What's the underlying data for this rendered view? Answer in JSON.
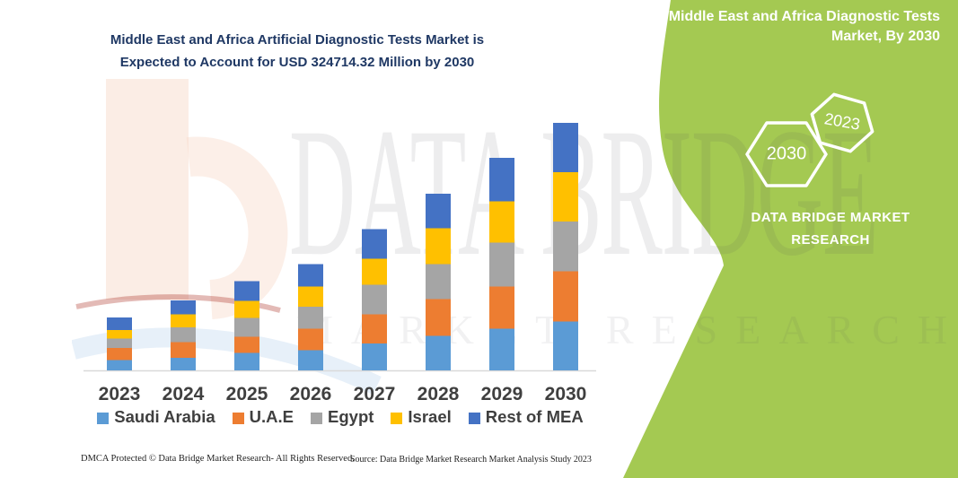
{
  "title": {
    "line1": "Middle East and Africa Artificial Diagnostic Tests Market is",
    "line2": "Expected to Account for USD 324714.32 Million by 2030"
  },
  "right_panel": {
    "heading_line1": "Middle East and Africa Diagnostic Tests",
    "heading_line2": "Market, By 2030",
    "hexagons": [
      {
        "label": "2030"
      },
      {
        "label": "2023"
      }
    ],
    "brand_line1": "DATA BRIDGE MARKET",
    "brand_line2": "RESEARCH",
    "panel_color": "#A4C952"
  },
  "watermark": {
    "big_text": "DATA BRIDGE",
    "sub_text": "MARKET RESEARCH"
  },
  "footer": {
    "left": "DMCA Protected © Data Bridge Market Research-  All Rights Reserved.",
    "right": "Source: Data Bridge Market Research  Market Analysis Study 2023"
  },
  "theme": {
    "title_color": "#1F3864",
    "axis_text_color": "#3F3F3F",
    "axis_line_color": "#D9D9D9"
  },
  "chart_data": {
    "type": "bar",
    "stacked": true,
    "unit": "USD Million",
    "grid": false,
    "y_axis_visible": false,
    "legend_position": "bottom",
    "categories": [
      "2023",
      "2024",
      "2025",
      "2026",
      "2027",
      "2028",
      "2029",
      "2030"
    ],
    "series": [
      {
        "name": "Saudi Arabia",
        "color": "#5B9BD5",
        "values": [
          13650,
          16470,
          22820,
          26710,
          35290,
          45180,
          54940,
          64000
        ]
      },
      {
        "name": "U.A.E",
        "color": "#ED7D31",
        "values": [
          15760,
          20710,
          21530,
          28240,
          38350,
          48240,
          54940,
          65880
        ]
      },
      {
        "name": "Egypt",
        "color": "#A5A5A5",
        "values": [
          12470,
          19290,
          24710,
          28590,
          38820,
          46240,
          58000,
          65410
        ]
      },
      {
        "name": "Israel",
        "color": "#FFC000",
        "values": [
          11060,
          16820,
          22350,
          26350,
          34120,
          46710,
          53760,
          64710
        ]
      },
      {
        "name": "Rest of MEA",
        "color": "#4472C4",
        "values": [
          16470,
          18470,
          25530,
          29410,
          38820,
          45410,
          57180,
          64714.32
        ]
      }
    ],
    "totals_estimated": [
      69410,
      91760,
      116940,
      139300,
      185400,
      231780,
      278820,
      324714.32
    ],
    "ylim": [
      0,
      324714.32
    ]
  }
}
